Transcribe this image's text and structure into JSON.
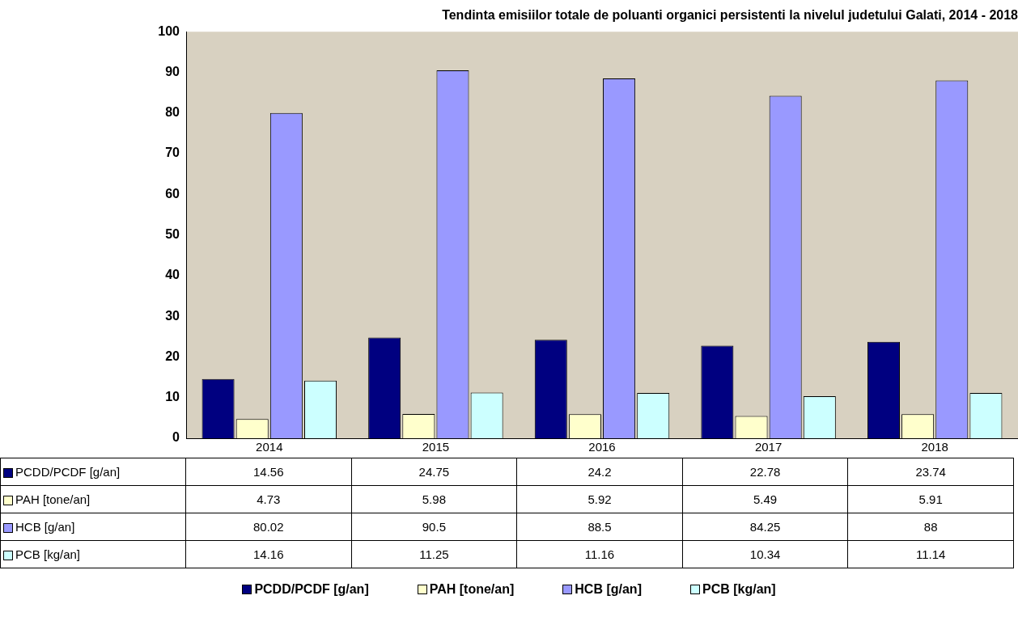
{
  "chart_data": {
    "type": "bar",
    "title": "Tendinta emisiilor totale de poluanti organici persistenti la nivelul judetului Galati, 2014 - 2018",
    "categories": [
      "2014",
      "2015",
      "2016",
      "2017",
      "2018"
    ],
    "series": [
      {
        "name": "PCDD/PCDF [g/an]",
        "color": "#000080",
        "values": [
          14.56,
          24.75,
          24.2,
          22.78,
          23.74
        ]
      },
      {
        "name": "PAH [tone/an]",
        "color": "#ffffcc",
        "values": [
          4.73,
          5.98,
          5.92,
          5.49,
          5.91
        ]
      },
      {
        "name": "HCB [g/an]",
        "color": "#9999ff",
        "values": [
          80.02,
          90.5,
          88.5,
          84.25,
          88
        ]
      },
      {
        "name": "PCB [kg/an]",
        "color": "#ccffff",
        "values": [
          14.16,
          11.25,
          11.16,
          10.34,
          11.14
        ]
      }
    ],
    "ylim": [
      0,
      100
    ],
    "yticks": [
      0,
      10,
      20,
      30,
      40,
      50,
      60,
      70,
      80,
      90,
      100
    ],
    "grid": false,
    "legend": "bottom",
    "data_labels": true
  }
}
